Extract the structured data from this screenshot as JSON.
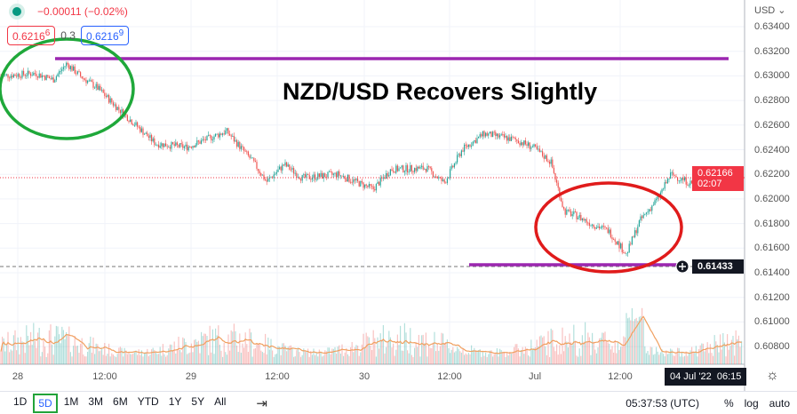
{
  "legend": {
    "change": "−0.00011 (−0.02%)",
    "sell_price": "0.6216",
    "sell_sup": "6",
    "spread": "0.3",
    "buy_price": "0.6216",
    "buy_sup": "9"
  },
  "annotation_title": "NZD/USD Recovers Slightly",
  "price_axis": {
    "currency": "USD ⌄",
    "ticks": [
      "0.63400",
      "0.63200",
      "0.63000",
      "0.62800",
      "0.62600",
      "0.62400",
      "0.62200",
      "0.62000",
      "0.61800",
      "0.61600",
      "0.61400",
      "0.61200",
      "0.61000",
      "0.60800"
    ],
    "current_price": "0.62166",
    "countdown": "02:07",
    "line_price": "0.61433"
  },
  "time_axis": {
    "ticks": [
      "28",
      "12:00",
      "29",
      "12:00",
      "30",
      "12:00",
      "Jul",
      "12:00"
    ],
    "crosshair_label": "04 Jul '22  06:15"
  },
  "bottom_bar": {
    "timeframes": [
      "1D",
      "5D",
      "1M",
      "3M",
      "6M",
      "YTD",
      "1Y",
      "5Y",
      "All"
    ],
    "active": "5D",
    "clock": "05:37:53 (UTC)",
    "pct": "%",
    "log": "log",
    "auto": "auto"
  },
  "colors": {
    "up": "#26a69a",
    "down": "#ef5350",
    "purple_line": "#9c27b0",
    "green_circle": "#1fa83a",
    "red_circle": "#e01b1b",
    "current_price": "#f23645"
  }
}
